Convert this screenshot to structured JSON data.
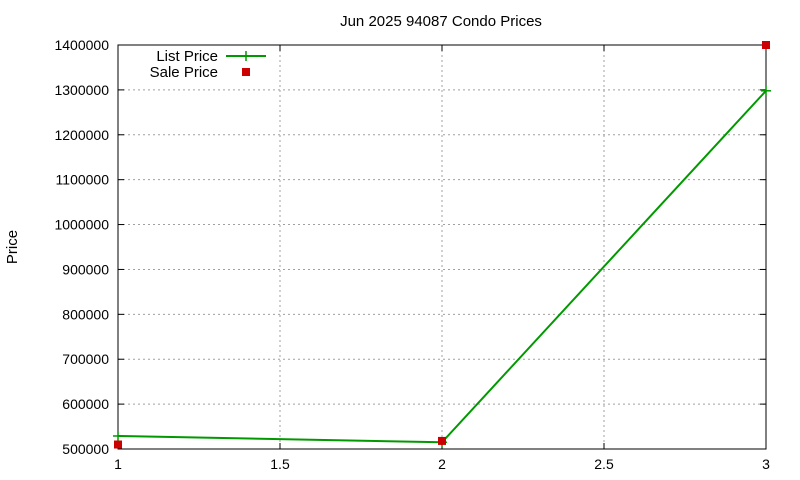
{
  "chart_data": {
    "type": "line",
    "title": "Jun 2025 94087 Condo Prices",
    "xlabel": "",
    "ylabel": "Price",
    "xlim": [
      1,
      3
    ],
    "ylim": [
      500000,
      1400000
    ],
    "x_ticks": [
      "1",
      "1.5",
      "2",
      "2.5",
      "3"
    ],
    "y_ticks": [
      "500000",
      "600000",
      "700000",
      "800000",
      "900000",
      "1000000",
      "1100000",
      "1200000",
      "1300000",
      "1400000"
    ],
    "grid": true,
    "legend_position": "top-left",
    "series": [
      {
        "name": "List Price",
        "style": "linespoints",
        "color": "#009900",
        "marker": "plus",
        "points": [
          {
            "x": 1,
            "y": 529000
          },
          {
            "x": 2,
            "y": 515000
          },
          {
            "x": 3,
            "y": 1298000
          }
        ]
      },
      {
        "name": "Sale Price",
        "style": "points",
        "color": "#cc0000",
        "marker": "square",
        "points": [
          {
            "x": 1,
            "y": 510000
          },
          {
            "x": 2,
            "y": 518000
          },
          {
            "x": 3,
            "y": 1400000
          }
        ]
      }
    ]
  }
}
